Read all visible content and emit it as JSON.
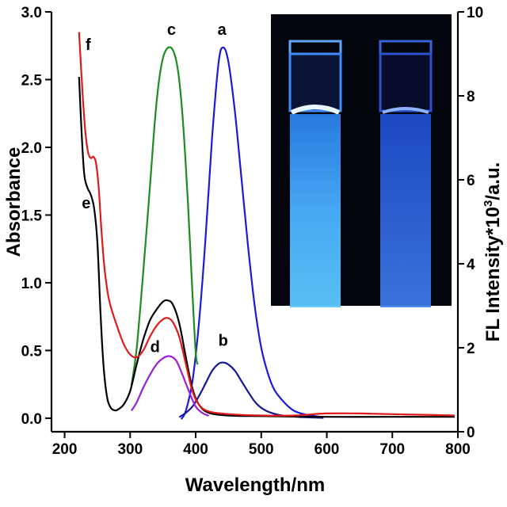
{
  "chart_data": {
    "type": "line",
    "xlabel": "Wavelength/nm",
    "ylabel_left": "Absorbance",
    "ylabel_right_prefix": "FL Intensity*10",
    "ylabel_right_superscript": "3",
    "ylabel_right_suffix": "/a.u.",
    "xlim": [
      180,
      800
    ],
    "ylim_left": [
      -0.1,
      3.0
    ],
    "ylim_right": [
      0,
      10
    ],
    "x_ticks": [
      200,
      300,
      400,
      500,
      600,
      700,
      800
    ],
    "y_left_ticks": [
      "0.0",
      "0.5",
      "1.0",
      "1.5",
      "2.0",
      "2.5",
      "3.0"
    ],
    "y_right_ticks": [
      "0",
      "2",
      "4",
      "6",
      "8",
      "10"
    ],
    "grid": false,
    "inset": "photo of two cuvettes with blue fluorescence (top-right)",
    "series": [
      {
        "name": "a",
        "axis": "right",
        "color": "#1a1adb",
        "label": "a",
        "label_at": [
          440,
          9.45
        ],
        "points": [
          [
            378,
            0.3
          ],
          [
            385,
            0.5
          ],
          [
            395,
            1.2
          ],
          [
            405,
            2.6
          ],
          [
            415,
            4.6
          ],
          [
            425,
            7.0
          ],
          [
            435,
            8.8
          ],
          [
            442,
            9.15
          ],
          [
            450,
            8.8
          ],
          [
            460,
            7.6
          ],
          [
            470,
            6.0
          ],
          [
            480,
            4.4
          ],
          [
            490,
            3.0
          ],
          [
            500,
            2.0
          ],
          [
            510,
            1.4
          ],
          [
            520,
            1.0
          ],
          [
            535,
            0.7
          ],
          [
            550,
            0.5
          ],
          [
            570,
            0.4
          ],
          [
            595,
            0.35
          ]
        ]
      },
      {
        "name": "b",
        "axis": "right",
        "color": "#17179a",
        "label": "b",
        "label_at": [
          442,
          2.05
        ],
        "points": [
          [
            375,
            0.35
          ],
          [
            385,
            0.45
          ],
          [
            395,
            0.6
          ],
          [
            405,
            0.85
          ],
          [
            415,
            1.15
          ],
          [
            425,
            1.45
          ],
          [
            435,
            1.62
          ],
          [
            442,
            1.65
          ],
          [
            450,
            1.6
          ],
          [
            460,
            1.45
          ],
          [
            470,
            1.2
          ],
          [
            480,
            0.95
          ],
          [
            490,
            0.72
          ],
          [
            500,
            0.57
          ],
          [
            515,
            0.45
          ],
          [
            535,
            0.38
          ],
          [
            560,
            0.35
          ],
          [
            595,
            0.33
          ]
        ]
      },
      {
        "name": "c",
        "axis": "right",
        "color": "#1f8c1f",
        "label": "c",
        "label_at": [
          363,
          9.45
        ],
        "points": [
          [
            302,
            1.1
          ],
          [
            310,
            2.0
          ],
          [
            320,
            3.8
          ],
          [
            330,
            5.8
          ],
          [
            340,
            7.8
          ],
          [
            350,
            8.9
          ],
          [
            362,
            9.15
          ],
          [
            372,
            8.7
          ],
          [
            380,
            7.5
          ],
          [
            388,
            5.5
          ],
          [
            395,
            3.3
          ],
          [
            400,
            1.9
          ],
          [
            403,
            1.6
          ]
        ]
      },
      {
        "name": "d",
        "axis": "right",
        "color": "#9a1fe0",
        "label": "d",
        "label_at": [
          338,
          1.9
        ],
        "points": [
          [
            302,
            0.5
          ],
          [
            310,
            0.7
          ],
          [
            320,
            1.05
          ],
          [
            330,
            1.35
          ],
          [
            340,
            1.6
          ],
          [
            350,
            1.75
          ],
          [
            360,
            1.8
          ],
          [
            370,
            1.7
          ],
          [
            380,
            1.35
          ],
          [
            390,
            0.95
          ],
          [
            400,
            0.6
          ],
          [
            410,
            0.45
          ],
          [
            420,
            0.38
          ]
        ]
      },
      {
        "name": "e",
        "axis": "left",
        "color": "#000000",
        "label": "e",
        "label_at": [
          233,
          1.55
        ],
        "points": [
          [
            222,
            2.52
          ],
          [
            226,
            2.1
          ],
          [
            230,
            1.8
          ],
          [
            235,
            1.7
          ],
          [
            240,
            1.65
          ],
          [
            245,
            1.55
          ],
          [
            250,
            1.3
          ],
          [
            255,
            0.75
          ],
          [
            260,
            0.35
          ],
          [
            265,
            0.15
          ],
          [
            270,
            0.08
          ],
          [
            275,
            0.06
          ],
          [
            280,
            0.06
          ],
          [
            290,
            0.1
          ],
          [
            300,
            0.2
          ],
          [
            310,
            0.4
          ],
          [
            320,
            0.58
          ],
          [
            330,
            0.72
          ],
          [
            340,
            0.8
          ],
          [
            350,
            0.86
          ],
          [
            357,
            0.87
          ],
          [
            365,
            0.84
          ],
          [
            375,
            0.7
          ],
          [
            385,
            0.45
          ],
          [
            395,
            0.22
          ],
          [
            405,
            0.1
          ],
          [
            420,
            0.04
          ],
          [
            450,
            0.02
          ],
          [
            500,
            0.015
          ],
          [
            600,
            0.01
          ],
          [
            700,
            0.01
          ],
          [
            795,
            0.01
          ]
        ]
      },
      {
        "name": "f",
        "axis": "left",
        "color": "#e01a1a",
        "label": "f",
        "label_at": [
          236,
          2.72
        ],
        "points": [
          [
            222,
            2.85
          ],
          [
            225,
            2.6
          ],
          [
            228,
            2.35
          ],
          [
            232,
            2.1
          ],
          [
            236,
            1.96
          ],
          [
            240,
            1.92
          ],
          [
            244,
            1.93
          ],
          [
            248,
            1.88
          ],
          [
            252,
            1.7
          ],
          [
            256,
            1.4
          ],
          [
            260,
            1.15
          ],
          [
            265,
            0.95
          ],
          [
            270,
            0.83
          ],
          [
            280,
            0.68
          ],
          [
            290,
            0.55
          ],
          [
            300,
            0.47
          ],
          [
            310,
            0.45
          ],
          [
            320,
            0.5
          ],
          [
            330,
            0.6
          ],
          [
            340,
            0.68
          ],
          [
            350,
            0.73
          ],
          [
            357,
            0.74
          ],
          [
            365,
            0.71
          ],
          [
            375,
            0.6
          ],
          [
            385,
            0.4
          ],
          [
            395,
            0.2
          ],
          [
            405,
            0.1
          ],
          [
            420,
            0.05
          ],
          [
            450,
            0.03
          ],
          [
            500,
            0.02
          ],
          [
            550,
            0.02
          ],
          [
            600,
            0.035
          ],
          [
            650,
            0.035
          ],
          [
            700,
            0.03
          ],
          [
            750,
            0.025
          ],
          [
            795,
            0.02
          ]
        ]
      }
    ]
  }
}
